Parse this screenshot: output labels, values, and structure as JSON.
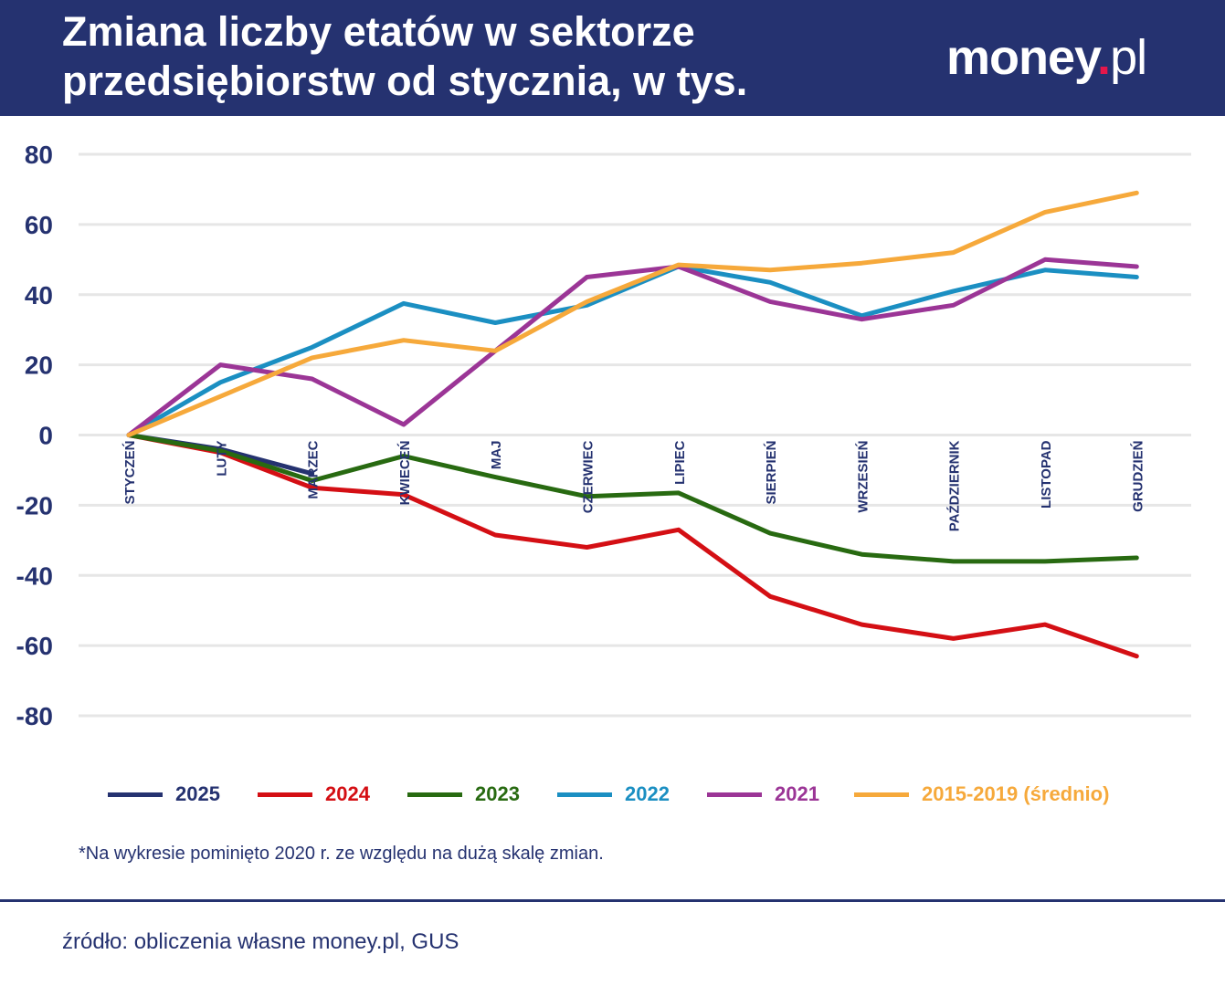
{
  "header": {
    "title_line1": "Zmiana liczby etatów w sektorze",
    "title_line2": "przedsiębiorstw od stycznia, w tys.",
    "logo_main": "money",
    "logo_dot": ".",
    "logo_suffix": "pl"
  },
  "colors": {
    "header_bg": "#253270",
    "axis_text": "#253270",
    "grid": "#e6e6e6",
    "logo_dot": "#e5174b"
  },
  "chart_data": {
    "type": "line",
    "title": "Zmiana liczby etatów w sektorze przedsiębiorstw od stycznia, w tys.",
    "xlabel": "",
    "ylabel": "",
    "ylim": [
      -80,
      80
    ],
    "yticks": [
      80,
      60,
      40,
      20,
      0,
      -20,
      -40,
      -60,
      -80
    ],
    "grid": true,
    "legend_position": "bottom",
    "categories": [
      "STYCZEŃ",
      "LUTY",
      "MARZEC",
      "KWIECEŃ",
      "MAJ",
      "CZERWIEC",
      "LIPIEC",
      "SIERPIEŃ",
      "WRZESIEŃ",
      "PAŹDZIERNIK",
      "LISTOPAD",
      "GRUDZIEŃ"
    ],
    "series": [
      {
        "name": "2025",
        "color": "#253270",
        "values": [
          0,
          -4,
          -11,
          null,
          null,
          null,
          null,
          null,
          null,
          null,
          null,
          null
        ]
      },
      {
        "name": "2024",
        "color": "#d40f14",
        "values": [
          0,
          -5,
          -15,
          -17,
          -28.5,
          -32,
          -27,
          -46,
          -54,
          -58,
          -54,
          -63
        ]
      },
      {
        "name": "2023",
        "color": "#286a11",
        "values": [
          0,
          -4.5,
          -13,
          -6,
          -12,
          -17.5,
          -16.5,
          -28,
          -34,
          -36,
          -36,
          -35
        ]
      },
      {
        "name": "2022",
        "color": "#1b8fc2",
        "values": [
          0,
          15,
          25,
          37.5,
          32,
          37,
          48,
          43.5,
          34,
          41,
          47,
          45
        ]
      },
      {
        "name": "2021",
        "color": "#9b3596",
        "values": [
          0,
          20,
          16,
          3,
          24,
          45,
          48,
          38,
          33,
          37,
          50,
          48
        ]
      },
      {
        "name": "2015-2019 (średnio)",
        "color": "#f6a93b",
        "values": [
          0,
          11,
          22,
          27,
          24,
          38,
          48.5,
          47,
          49,
          52,
          63.5,
          69
        ]
      }
    ]
  },
  "footnote": "*Na wykresie pominięto 2020 r. ze względu na dużą skalę zmian.",
  "source": "źródło: obliczenia własne money.pl, GUS"
}
